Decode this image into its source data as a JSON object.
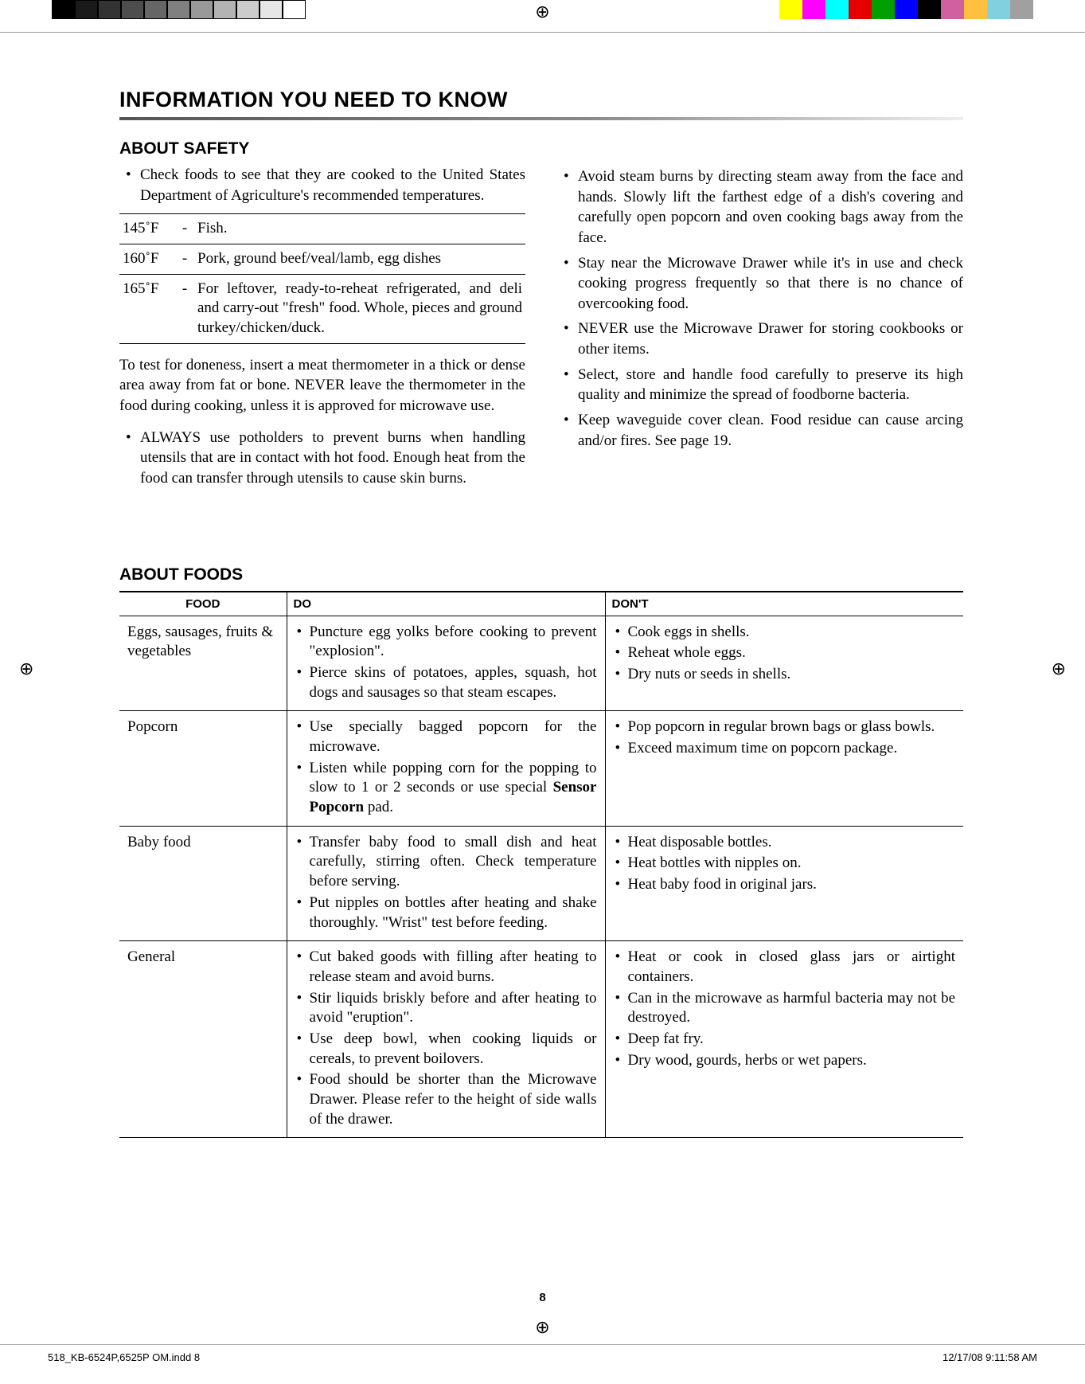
{
  "printer": {
    "gray_swatches": [
      "#000000",
      "#1a1a1a",
      "#333333",
      "#4d4d4d",
      "#666666",
      "#808080",
      "#999999",
      "#b3b3b3",
      "#cccccc",
      "#e6e6e6",
      "#ffffff"
    ],
    "color_swatches": [
      "#ffff00",
      "#ff00ff",
      "#00ffff",
      "#e60000",
      "#00a000",
      "#0000ff",
      "#000000",
      "#d060a0",
      "#ffc040",
      "#80d0e0",
      "#a0a0a0"
    ],
    "gray_border": "#000000",
    "registration_glyph": "⊕"
  },
  "main_title": "INFORMATION YOU NEED TO KNOW",
  "safety": {
    "heading": "ABOUT SAFETY",
    "intro_bullet": "Check foods to see that they are cooked to the United States Department of Agriculture's recommended temperatures.",
    "temp_rows": [
      {
        "temp": "145˚F",
        "dash": "-",
        "desc": "Fish."
      },
      {
        "temp": "160˚F",
        "dash": "-",
        "desc": "Pork, ground beef/veal/lamb, egg dishes"
      },
      {
        "temp": "165˚F",
        "dash": "-",
        "desc": "For leftover, ready-to-reheat refrigerated, and deli and carry-out \"fresh\" food. Whole, pieces and ground turkey/chicken/duck."
      }
    ],
    "after_table": "To test for doneness, insert a meat thermometer in a thick or dense area away from fat or bone. NEVER leave the thermometer in the food during cooking, unless it is approved for microwave use.",
    "left_bullets": [
      "ALWAYS use potholders to prevent burns when handling utensils that are in contact with hot food. Enough heat from the food can transfer through utensils to cause skin burns."
    ],
    "right_bullets": [
      "Avoid steam burns by directing steam away from the face and hands. Slowly lift the farthest edge of a dish's covering and carefully open popcorn and oven cooking bags away from the face.",
      "Stay near the Microwave Drawer while it's in use and check cooking progress frequently so that there is no chance of overcooking food.",
      "NEVER use the Microwave Drawer for storing cookbooks or other items.",
      "Select, store and handle food carefully to preserve its high quality and minimize the spread of foodborne bacteria.",
      "Keep waveguide cover clean. Food residue can cause arcing and/or fires. See page 19."
    ]
  },
  "foods": {
    "heading": "ABOUT FOODS",
    "columns": [
      "FOOD",
      "DO",
      "DON'T"
    ],
    "rows": [
      {
        "food": "Eggs, sausages, fruits & vegetables",
        "do": [
          "Puncture egg yolks before cooking to prevent \"explosion\".",
          "Pierce skins of potatoes, apples, squash, hot dogs and sausages so that steam escapes."
        ],
        "dont": [
          "Cook eggs in shells.",
          "Reheat whole eggs.",
          "Dry nuts or seeds in shells."
        ]
      },
      {
        "food": "Popcorn",
        "do_html": "<li>Use specially bagged popcorn for the microwave.</li><li>Listen while popping corn for the popping to slow to 1 or 2 seconds or use special <b>Sensor Popcorn</b> pad.</li>",
        "dont": [
          "Pop popcorn in regular brown bags or glass bowls.",
          "Exceed maximum time on popcorn package."
        ]
      },
      {
        "food": "Baby food",
        "do": [
          "Transfer baby food to small dish and heat carefully, stirring often. Check temperature before serving.",
          "Put nipples on bottles after heating and shake thoroughly. \"Wrist\" test before feeding."
        ],
        "dont": [
          "Heat disposable bottles.",
          "Heat bottles with nipples on.",
          "Heat baby food in original jars."
        ]
      },
      {
        "food": "General",
        "do": [
          "Cut baked goods with filling after heating to release steam and avoid burns.",
          "Stir liquids briskly before and after heating to avoid \"eruption\".",
          "Use deep bowl, when cooking liquids or cereals, to prevent boilovers.",
          "Food should be shorter than the Microwave Drawer. Please refer to the height of side walls of the drawer."
        ],
        "dont": [
          "Heat or cook in closed glass jars or airtight containers.",
          "Can in the microwave as harmful bacteria may not be destroyed.",
          "Deep fat fry.",
          "Dry wood, gourds, herbs or wet papers."
        ]
      }
    ]
  },
  "page_number": "8",
  "footer": {
    "left": "518_KB-6524P,6525P OM.indd   8",
    "right": "12/17/08   9:11:58 AM"
  }
}
